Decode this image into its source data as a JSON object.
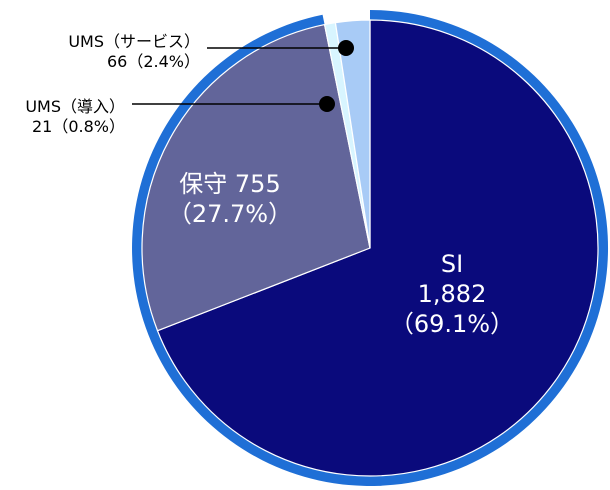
{
  "chart_data": {
    "type": "pie",
    "title": "",
    "colors": {
      "outer_ring": "#1f6fd6",
      "divider": "#ffffff"
    },
    "slices": [
      {
        "name": "SI",
        "value": 1882,
        "percent": "(69.1%)",
        "color": "#0a0a7c",
        "label_lines": [
          "SI",
          "1,882",
          "（69.1%）"
        ],
        "label_color": "#ffffff"
      },
      {
        "name": "保守",
        "value": 755,
        "percent": "(27.7%)",
        "color": "#62659a",
        "label_lines": [
          "保守 755",
          "（27.7%）"
        ],
        "label_color": "#ffffff"
      },
      {
        "name": "UMS（導入）",
        "value": 21,
        "percent": "(0.8%)",
        "color": "#d8f5ff",
        "label_lines": [
          "UMS（導入）",
          "21（0.8%）"
        ],
        "label_color": "#000000"
      },
      {
        "name": "UMS（サービス）",
        "value": 66,
        "percent": "(2.4%)",
        "color": "#a8cbf6",
        "label_lines": [
          "UMS（サービス）",
          "66（2.4%）"
        ],
        "label_color": "#000000"
      }
    ]
  }
}
